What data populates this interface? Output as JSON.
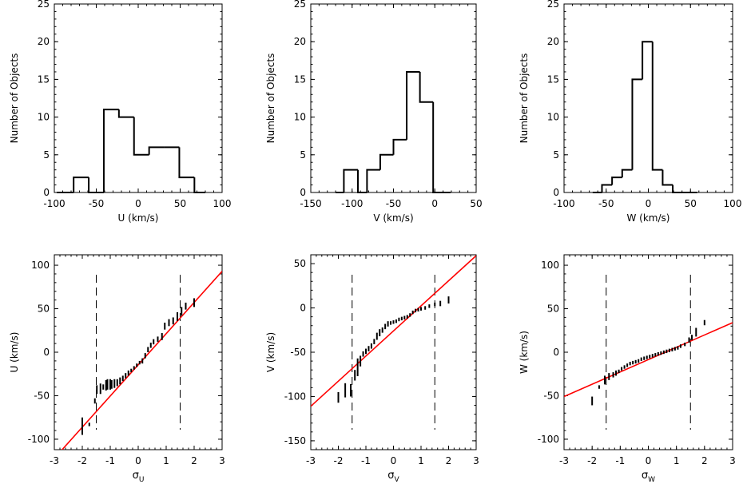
{
  "chart_data": [
    {
      "type": "histogram",
      "xlabel": "U (km/s)",
      "ylabel": "Number of Objects",
      "xlim": [
        -100,
        100
      ],
      "ylim": [
        0,
        25
      ],
      "xticks": [
        -100,
        -50,
        0,
        50,
        100
      ],
      "yticks": [
        0,
        5,
        10,
        15,
        20,
        25
      ],
      "bin_edges": [
        -97,
        -77,
        -59,
        -41,
        -23,
        -5,
        13,
        31,
        49,
        67,
        80
      ],
      "counts": [
        0,
        2,
        0,
        11,
        10,
        5,
        6,
        6,
        2,
        0
      ]
    },
    {
      "type": "histogram",
      "xlabel": "V (km/s)",
      "ylabel": "Number of Objects",
      "xlim": [
        -150,
        50
      ],
      "ylim": [
        0,
        25
      ],
      "xticks": [
        -150,
        -100,
        -50,
        0,
        50
      ],
      "yticks": [
        0,
        5,
        10,
        15,
        20,
        25
      ],
      "bin_edges": [
        -120,
        -110,
        -93,
        -82,
        -66,
        -50,
        -34,
        -18,
        -2,
        12,
        19
      ],
      "counts": [
        0,
        3,
        0,
        3,
        5,
        7,
        16,
        12,
        0,
        0
      ]
    },
    {
      "type": "histogram",
      "xlabel": "W (km/s)",
      "ylabel": "Number of Objects",
      "xlim": [
        -100,
        100
      ],
      "ylim": [
        0,
        25
      ],
      "xticks": [
        -100,
        -50,
        0,
        50,
        100
      ],
      "yticks": [
        0,
        5,
        10,
        15,
        20,
        25
      ],
      "bin_edges": [
        -66,
        -55,
        -43,
        -31,
        -19,
        -7,
        5,
        17,
        29,
        41,
        58
      ],
      "counts": [
        0,
        1,
        2,
        3,
        15,
        20,
        3,
        1,
        0,
        0
      ]
    },
    {
      "type": "scatter",
      "xlabel": "σ_U",
      "xlabel_main": "σ",
      "xlabel_sub": "U",
      "ylabel": "U (km/s)",
      "xlim": [
        -3,
        3
      ],
      "ylim": [
        -112,
        112
      ],
      "xticks": [
        -3,
        -2,
        -1,
        0,
        1,
        2,
        3
      ],
      "yticks": [
        -100,
        -50,
        0,
        50,
        100
      ],
      "vlines": [
        -1.5,
        1.5
      ],
      "fit_line": {
        "x": [
          -3,
          3
        ],
        "y": [
          -122,
          93
        ]
      },
      "points": [
        {
          "x": -2.0,
          "y": -85,
          "err": 10
        },
        {
          "x": -1.75,
          "y": -83,
          "err": 2
        },
        {
          "x": -1.55,
          "y": -56,
          "err": 3
        },
        {
          "x": -1.48,
          "y": -43,
          "err": 5
        },
        {
          "x": -1.35,
          "y": -42,
          "err": 6
        },
        {
          "x": -1.25,
          "y": -40,
          "err": 3
        },
        {
          "x": -1.15,
          "y": -38,
          "err": 6
        },
        {
          "x": -1.1,
          "y": -37,
          "err": 6
        },
        {
          "x": -1.0,
          "y": -37,
          "err": 6
        },
        {
          "x": -0.95,
          "y": -37,
          "err": 5
        },
        {
          "x": -0.85,
          "y": -36,
          "err": 5
        },
        {
          "x": -0.75,
          "y": -35,
          "err": 4
        },
        {
          "x": -0.65,
          "y": -33,
          "err": 4
        },
        {
          "x": -0.55,
          "y": -30,
          "err": 3
        },
        {
          "x": -0.45,
          "y": -27,
          "err": 3
        },
        {
          "x": -0.35,
          "y": -24,
          "err": 3
        },
        {
          "x": -0.25,
          "y": -21,
          "err": 2
        },
        {
          "x": -0.15,
          "y": -18,
          "err": 2
        },
        {
          "x": -0.05,
          "y": -15,
          "err": 2
        },
        {
          "x": 0.05,
          "y": -12,
          "err": 2
        },
        {
          "x": 0.15,
          "y": -10,
          "err": 3
        },
        {
          "x": 0.25,
          "y": -4,
          "err": 3
        },
        {
          "x": 0.35,
          "y": 3,
          "err": 3
        },
        {
          "x": 0.45,
          "y": 8,
          "err": 3
        },
        {
          "x": 0.55,
          "y": 12,
          "err": 3
        },
        {
          "x": 0.7,
          "y": 15,
          "err": 3
        },
        {
          "x": 0.85,
          "y": 18,
          "err": 4
        },
        {
          "x": 0.95,
          "y": 30,
          "err": 4
        },
        {
          "x": 1.1,
          "y": 34,
          "err": 4
        },
        {
          "x": 1.25,
          "y": 36,
          "err": 4
        },
        {
          "x": 1.4,
          "y": 41,
          "err": 5
        },
        {
          "x": 1.55,
          "y": 47,
          "err": 5
        },
        {
          "x": 1.7,
          "y": 53,
          "err": 4
        },
        {
          "x": 2.0,
          "y": 57,
          "err": 5
        }
      ]
    },
    {
      "type": "scatter",
      "xlabel": "σ_V",
      "xlabel_main": "σ",
      "xlabel_sub": "V",
      "ylabel": "V (km/s)",
      "xlim": [
        -3,
        3
      ],
      "ylim": [
        -160,
        60
      ],
      "xticks": [
        -3,
        -2,
        -1,
        0,
        1,
        2,
        3
      ],
      "yticks": [
        -150,
        -100,
        -50,
        0,
        50
      ],
      "vlines": [
        -1.5,
        1.5
      ],
      "fit_line": {
        "x": [
          -3,
          3
        ],
        "y": [
          -111,
          59
        ]
      },
      "points": [
        {
          "x": -2.0,
          "y": -101,
          "err": 6
        },
        {
          "x": -1.75,
          "y": -93,
          "err": 8
        },
        {
          "x": -1.55,
          "y": -93,
          "err": 7
        },
        {
          "x": -1.4,
          "y": -76,
          "err": 6
        },
        {
          "x": -1.3,
          "y": -67,
          "err": 10
        },
        {
          "x": -1.2,
          "y": -60,
          "err": 6
        },
        {
          "x": -1.1,
          "y": -52,
          "err": 3
        },
        {
          "x": -1.0,
          "y": -49,
          "err": 3
        },
        {
          "x": -0.9,
          "y": -46,
          "err": 3
        },
        {
          "x": -0.8,
          "y": -43,
          "err": 3
        },
        {
          "x": -0.7,
          "y": -38,
          "err": 3
        },
        {
          "x": -0.6,
          "y": -32,
          "err": 4
        },
        {
          "x": -0.5,
          "y": -28,
          "err": 4
        },
        {
          "x": -0.4,
          "y": -25,
          "err": 3
        },
        {
          "x": -0.3,
          "y": -21,
          "err": 3
        },
        {
          "x": -0.2,
          "y": -18,
          "err": 3
        },
        {
          "x": -0.1,
          "y": -17,
          "err": 2
        },
        {
          "x": 0.0,
          "y": -16,
          "err": 2
        },
        {
          "x": 0.1,
          "y": -15,
          "err": 2
        },
        {
          "x": 0.2,
          "y": -13,
          "err": 2
        },
        {
          "x": 0.3,
          "y": -12,
          "err": 2
        },
        {
          "x": 0.4,
          "y": -11,
          "err": 2
        },
        {
          "x": 0.5,
          "y": -10,
          "err": 2
        },
        {
          "x": 0.6,
          "y": -8,
          "err": 2
        },
        {
          "x": 0.7,
          "y": -5,
          "err": 2
        },
        {
          "x": 0.8,
          "y": -3,
          "err": 2
        },
        {
          "x": 0.9,
          "y": -2,
          "err": 2
        },
        {
          "x": 1.0,
          "y": -1,
          "err": 2
        },
        {
          "x": 1.15,
          "y": 0,
          "err": 2
        },
        {
          "x": 1.3,
          "y": 2,
          "err": 2
        },
        {
          "x": 1.5,
          "y": 4,
          "err": 2
        },
        {
          "x": 1.7,
          "y": 5,
          "err": 3
        },
        {
          "x": 2.0,
          "y": 9,
          "err": 4
        }
      ]
    },
    {
      "type": "scatter",
      "xlabel": "σ_W",
      "xlabel_main": "σ",
      "xlabel_sub": "W",
      "ylabel": "W (km/s)",
      "xlim": [
        -3,
        3
      ],
      "ylim": [
        -112,
        112
      ],
      "xticks": [
        -3,
        -2,
        -1,
        0,
        1,
        2,
        3
      ],
      "yticks": [
        -100,
        -50,
        0,
        50,
        100
      ],
      "vlines": [
        -1.5,
        1.5
      ],
      "fit_line": {
        "x": [
          -3,
          3
        ],
        "y": [
          -51,
          34
        ]
      },
      "points": [
        {
          "x": -2.0,
          "y": -56,
          "err": 5
        },
        {
          "x": -1.75,
          "y": -40,
          "err": 2
        },
        {
          "x": -1.55,
          "y": -32,
          "err": 5
        },
        {
          "x": -1.4,
          "y": -28,
          "err": 4
        },
        {
          "x": -1.25,
          "y": -26,
          "err": 3
        },
        {
          "x": -1.15,
          "y": -24,
          "err": 3
        },
        {
          "x": -1.05,
          "y": -22,
          "err": 2
        },
        {
          "x": -0.95,
          "y": -19,
          "err": 2
        },
        {
          "x": -0.85,
          "y": -17,
          "err": 2
        },
        {
          "x": -0.75,
          "y": -15,
          "err": 2
        },
        {
          "x": -0.65,
          "y": -13,
          "err": 2
        },
        {
          "x": -0.55,
          "y": -12,
          "err": 2
        },
        {
          "x": -0.45,
          "y": -11,
          "err": 2
        },
        {
          "x": -0.35,
          "y": -10,
          "err": 2
        },
        {
          "x": -0.25,
          "y": -8,
          "err": 2
        },
        {
          "x": -0.15,
          "y": -7,
          "err": 2
        },
        {
          "x": -0.05,
          "y": -6,
          "err": 2
        },
        {
          "x": 0.05,
          "y": -5,
          "err": 2
        },
        {
          "x": 0.15,
          "y": -4,
          "err": 2
        },
        {
          "x": 0.25,
          "y": -3,
          "err": 2
        },
        {
          "x": 0.35,
          "y": -2,
          "err": 2
        },
        {
          "x": 0.45,
          "y": -1,
          "err": 2
        },
        {
          "x": 0.55,
          "y": 0,
          "err": 2
        },
        {
          "x": 0.65,
          "y": 1,
          "err": 2
        },
        {
          "x": 0.75,
          "y": 2,
          "err": 2
        },
        {
          "x": 0.85,
          "y": 3,
          "err": 2
        },
        {
          "x": 0.95,
          "y": 4,
          "err": 2
        },
        {
          "x": 1.05,
          "y": 5,
          "err": 2
        },
        {
          "x": 1.15,
          "y": 7,
          "err": 2
        },
        {
          "x": 1.3,
          "y": 9,
          "err": 2
        },
        {
          "x": 1.45,
          "y": 14,
          "err": 3
        },
        {
          "x": 1.55,
          "y": 17,
          "err": 3
        },
        {
          "x": 1.7,
          "y": 23,
          "err": 5
        },
        {
          "x": 2.0,
          "y": 34,
          "err": 3
        }
      ]
    }
  ],
  "colors": {
    "axes": "#000000",
    "fit_line": "#ff0000",
    "guides": "#000000"
  }
}
